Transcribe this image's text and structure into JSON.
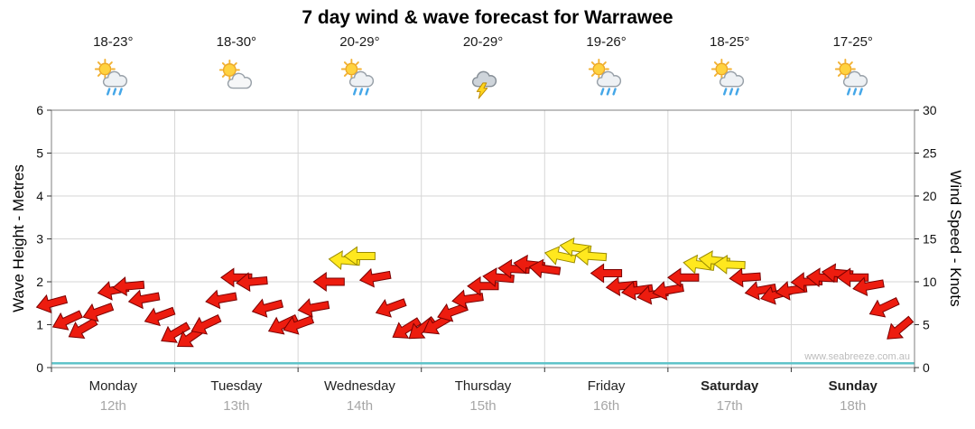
{
  "title": "7 day wind & wave forecast for Warrawee",
  "watermark": "www.seabreeze.com.au",
  "days": [
    {
      "name": "Monday",
      "date": "12th",
      "temp": "18-23°",
      "icon": "sun-cloud-rain"
    },
    {
      "name": "Tuesday",
      "date": "13th",
      "temp": "18-30°",
      "icon": "sun-cloud"
    },
    {
      "name": "Wednesday",
      "date": "14th",
      "temp": "20-29°",
      "icon": "sun-cloud-rain"
    },
    {
      "name": "Thursday",
      "date": "15th",
      "temp": "20-29°",
      "icon": "storm"
    },
    {
      "name": "Friday",
      "date": "16th",
      "temp": "19-26°",
      "icon": "sun-cloud-rain"
    },
    {
      "name": "Saturday",
      "date": "17th",
      "temp": "18-25°",
      "icon": "sun-cloud-rain"
    },
    {
      "name": "Sunday",
      "date": "18th",
      "temp": "17-25°",
      "icon": "sun-cloud-rain"
    }
  ],
  "axes": {
    "left": {
      "label": "Wave Height - Metres"
    },
    "right": {
      "label": "Wind Speed - Knots"
    }
  },
  "chart_data": {
    "type": "scatter",
    "title": "7 day wind & wave forecast for Warrawee",
    "x": {
      "days": [
        "Monday 12th",
        "Tuesday 13th",
        "Wednesday 14th",
        "Thursday 15th",
        "Friday 16th",
        "Saturday 17th",
        "Sunday 18th"
      ],
      "hours_per_day": [
        0,
        3,
        6,
        9,
        12,
        15,
        18,
        21
      ]
    },
    "y_left_axis": {
      "label": "Wave Height - Metres",
      "range": [
        0,
        6
      ],
      "ticks": [
        0,
        1,
        2,
        3,
        4,
        5,
        6
      ]
    },
    "y_right_axis": {
      "label": "Wind Speed - Knots",
      "range": [
        0,
        30
      ],
      "ticks": [
        0,
        5,
        10,
        15,
        20,
        25,
        30
      ]
    },
    "grid": true,
    "legend": "none",
    "arrow_colors": {
      "red": "#ed1c0f",
      "yellow": "#ffe81e"
    },
    "dir_note": "dir_deg = arrow rotation, clockwise from pointing-right",
    "wind_series": [
      {
        "day": "Monday",
        "knots": [
          7.5,
          5.5,
          4.5,
          6.5,
          9,
          9.5,
          8,
          6
        ],
        "dir_deg": [
          165,
          155,
          150,
          160,
          170,
          175,
          170,
          160
        ],
        "colors": [
          "r",
          "r",
          "r",
          "r",
          "r",
          "r",
          "r",
          "r"
        ]
      },
      {
        "day": "Tuesday",
        "knots": [
          4,
          3.5,
          5,
          8,
          10.5,
          10,
          7,
          5
        ],
        "dir_deg": [
          150,
          145,
          155,
          170,
          180,
          175,
          165,
          155
        ],
        "colors": [
          "r",
          "r",
          "r",
          "r",
          "r",
          "r",
          "r",
          "r"
        ]
      },
      {
        "day": "Wednesday",
        "knots": [
          5,
          7,
          10,
          12.5,
          13,
          10.5,
          7,
          4.5
        ],
        "dir_deg": [
          160,
          170,
          180,
          185,
          180,
          170,
          160,
          148
        ],
        "colors": [
          "r",
          "r",
          "r",
          "y",
          "y",
          "r",
          "r",
          "r"
        ]
      },
      {
        "day": "Thursday",
        "knots": [
          4.5,
          5,
          6.5,
          8,
          9.5,
          10.5,
          11.5,
          12
        ],
        "dir_deg": [
          142,
          150,
          160,
          172,
          180,
          185,
          183,
          186
        ],
        "colors": [
          "r",
          "r",
          "r",
          "r",
          "r",
          "r",
          "r",
          "r"
        ]
      },
      {
        "day": "Friday",
        "knots": [
          11.5,
          13,
          14,
          13,
          11,
          9.5,
          9,
          8.5
        ],
        "dir_deg": [
          188,
          192,
          188,
          184,
          180,
          175,
          172,
          170
        ],
        "colors": [
          "r",
          "y",
          "y",
          "y",
          "r",
          "r",
          "r",
          "r"
        ]
      },
      {
        "day": "Saturday",
        "knots": [
          9,
          10.5,
          12,
          12.5,
          12,
          10.5,
          9,
          8.5
        ],
        "dir_deg": [
          170,
          180,
          188,
          186,
          182,
          176,
          170,
          165
        ],
        "colors": [
          "r",
          "r",
          "y",
          "y",
          "y",
          "r",
          "r",
          "r"
        ]
      },
      {
        "day": "Sunday",
        "knots": [
          9,
          10,
          10.5,
          11,
          10.5,
          9.5,
          7,
          4.5
        ],
        "dir_deg": [
          172,
          178,
          183,
          185,
          180,
          170,
          155,
          140
        ],
        "colors": [
          "r",
          "r",
          "r",
          "r",
          "r",
          "r",
          "r",
          "r"
        ]
      }
    ],
    "wave_series": {
      "label": "Wave Height",
      "constant_m": 0.1,
      "color": "#5fc3c9"
    }
  }
}
